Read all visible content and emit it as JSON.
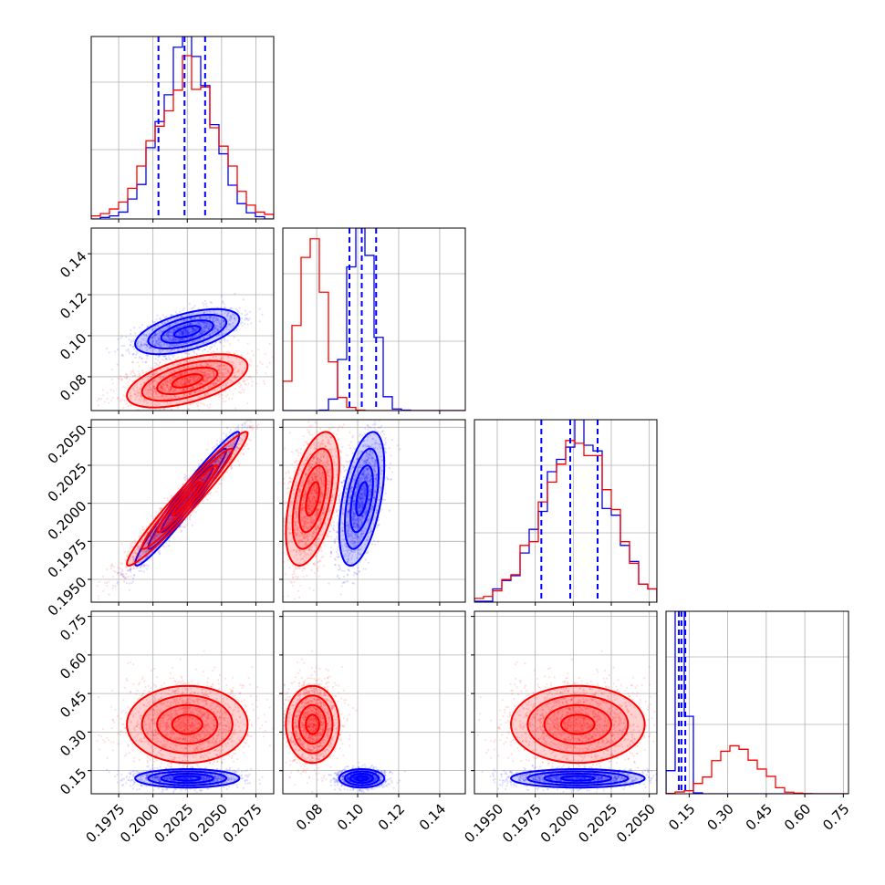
{
  "chart_data": {
    "type": "scatter",
    "plot_kind": "corner",
    "grid": true,
    "colors": {
      "blue": "#0000ff",
      "red": "#ff0000"
    },
    "series": [
      {
        "color": "#0000ff",
        "mean": [
          0.2025,
          0.102,
          0.2003,
          0.12
        ],
        "sd": [
          0.0019,
          0.0055,
          0.0022,
          0.018
        ],
        "quantiles": [
          [
            0.2004,
            0.2023,
            0.2038
          ],
          [
            0.096,
            0.102,
            0.109
          ],
          [
            0.1979,
            0.1998,
            0.2016
          ],
          [
            0.11,
            0.12,
            0.135
          ]
        ]
      },
      {
        "color": "#ff0000",
        "mean": [
          0.2025,
          0.078,
          0.2003,
          0.33
        ],
        "sd": [
          0.0022,
          0.0065,
          0.0022,
          0.075
        ]
      }
    ],
    "axes": [
      {
        "range": [
          0.1955,
          0.2088
        ],
        "ticks": [
          "0.1975",
          "0.2000",
          "0.2025",
          "0.2050",
          "0.2075"
        ]
      },
      {
        "range": [
          0.0635,
          0.1525
        ],
        "ticks": [
          "0.08",
          "0.10",
          "0.12",
          "0.14"
        ]
      },
      {
        "range": [
          0.1935,
          0.2055
        ],
        "ticks": [
          "0.1950",
          "0.1975",
          "0.2000",
          "0.2025",
          "0.2050"
        ]
      },
      {
        "range": [
          0.06,
          0.77
        ],
        "ticks": [
          "0.15",
          "0.30",
          "0.45",
          "0.60",
          "0.75"
        ]
      }
    ],
    "tick_values": [
      [
        0.1975,
        0.2,
        0.2025,
        0.205,
        0.2075
      ],
      [
        0.08,
        0.1,
        0.12,
        0.14
      ],
      [
        0.195,
        0.1975,
        0.2,
        0.2025,
        0.205
      ],
      [
        0.15,
        0.3,
        0.45,
        0.6,
        0.75
      ]
    ]
  }
}
